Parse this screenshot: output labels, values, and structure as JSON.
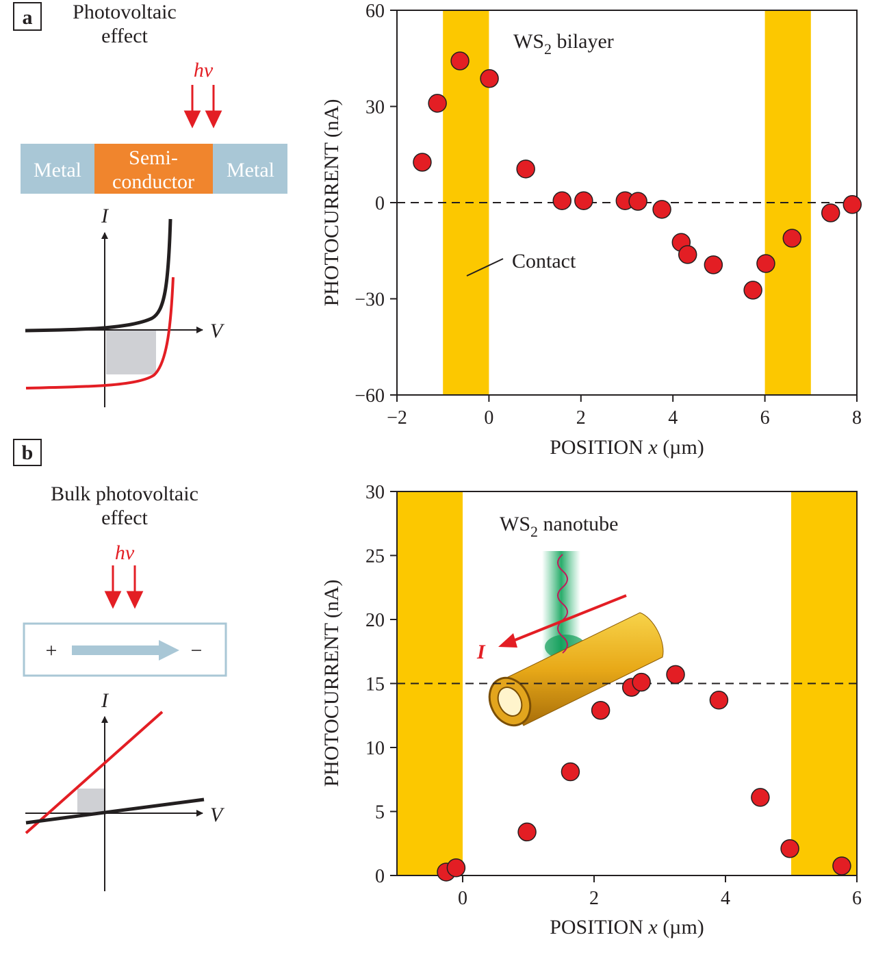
{
  "panel_a": {
    "letter": "a",
    "title_line1": "Photovoltaic",
    "title_line2": "effect",
    "light": "hν",
    "metal_left": "Metal",
    "semi_line1": "Semi-",
    "semi_line2": "conductor",
    "metal_right": "Metal",
    "axis_i": "I",
    "axis_v": "V"
  },
  "panel_b": {
    "letter": "b",
    "title_line1": "Bulk photovoltaic",
    "title_line2": "effect",
    "light": "hν",
    "plus": "+",
    "minus": "−",
    "axis_i": "I",
    "axis_v": "V",
    "inset_current": "I"
  },
  "colors": {
    "point": "#e31e24",
    "contact": "#fcc800",
    "metal": "#a9c7d6",
    "semiconductor": "#f0852d",
    "shaded": "#cfd0d4"
  },
  "chart_data": [
    {
      "type": "scatter",
      "title_main": "WS",
      "title_sub": "2",
      "title_rest": " bilayer",
      "annotation": "Contact",
      "xlabel_pre": "POSITION ",
      "xlabel_var": "x",
      "xlabel_post": " (µm)",
      "ylabel": "PHOTOCURRENT (nA)",
      "xlim": [
        -2,
        8
      ],
      "ylim": [
        -60,
        60
      ],
      "xticks": [
        -2,
        0,
        2,
        4,
        6,
        8
      ],
      "xtick_labels": [
        "−2",
        "0",
        "2",
        "4",
        "6",
        "8"
      ],
      "yticks": [
        -60,
        -30,
        0,
        30,
        60
      ],
      "ytick_labels": [
        "−60",
        "−30",
        "0",
        "30",
        "60"
      ],
      "reference_line": 0,
      "contact_bands": [
        [
          -1,
          0
        ],
        [
          6,
          7
        ]
      ],
      "x": [
        -1.45,
        -1.12,
        -0.63,
        0.01,
        0.8,
        1.59,
        2.06,
        2.96,
        3.24,
        3.76,
        4.18,
        4.32,
        4.88,
        5.74,
        6.02,
        6.59,
        7.43,
        7.9
      ],
      "y": [
        12.6,
        31.0,
        44.2,
        38.7,
        10.5,
        0.6,
        0.6,
        0.6,
        0.4,
        -2.1,
        -12.4,
        -16.2,
        -19.4,
        -27.3,
        -19.0,
        -11.1,
        -3.2,
        -0.6
      ]
    },
    {
      "type": "scatter",
      "title_main": "WS",
      "title_sub": "2",
      "title_rest": " nanotube",
      "xlabel_pre": "POSITION ",
      "xlabel_var": "x",
      "xlabel_post": " (µm)",
      "ylabel": "PHOTOCURRENT (nA)",
      "xlim": [
        -1,
        6
      ],
      "ylim": [
        0,
        30
      ],
      "xticks": [
        0,
        2,
        4,
        6
      ],
      "xtick_labels": [
        "0",
        "2",
        "4",
        "6"
      ],
      "yticks": [
        0,
        5,
        10,
        15,
        20,
        25,
        30
      ],
      "ytick_labels": [
        "0",
        "5",
        "10",
        "15",
        "20",
        "25",
        "30"
      ],
      "reference_line": 15,
      "contact_bands": [
        [
          -1,
          0
        ],
        [
          5,
          6
        ]
      ],
      "x": [
        -0.25,
        -0.1,
        0.98,
        1.64,
        2.1,
        2.57,
        2.72,
        3.24,
        3.9,
        4.53,
        4.98,
        5.77
      ],
      "y": [
        0.27,
        0.6,
        3.4,
        8.1,
        12.9,
        14.7,
        15.1,
        15.7,
        13.7,
        6.1,
        2.1,
        0.75
      ]
    }
  ]
}
